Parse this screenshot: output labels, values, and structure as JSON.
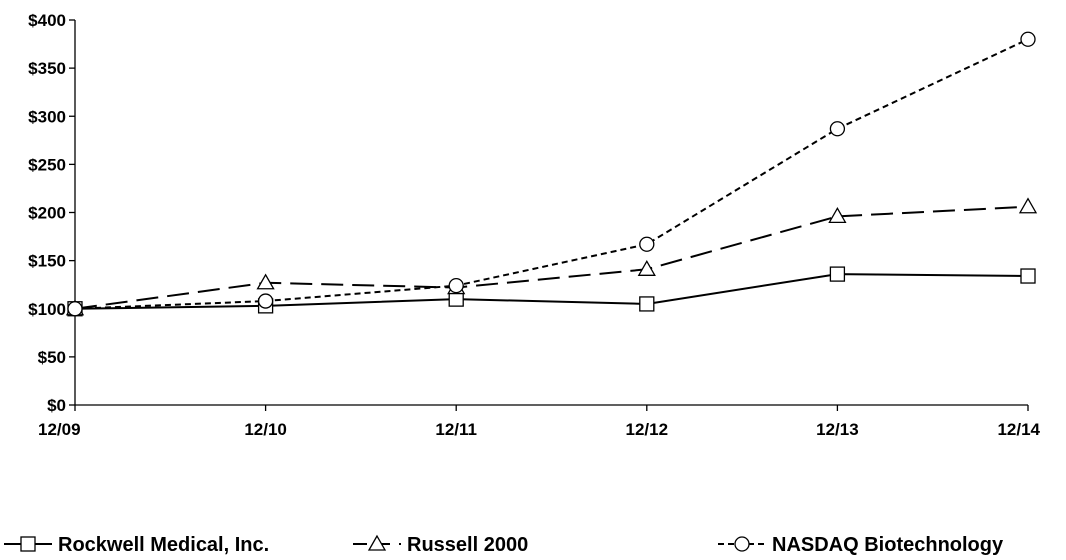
{
  "chart_data": {
    "type": "line",
    "categories": [
      "12/09",
      "12/10",
      "12/11",
      "12/12",
      "12/13",
      "12/14"
    ],
    "y_tick_labels": [
      "$0",
      "$50",
      "$100",
      "$150",
      "$200",
      "$250",
      "$300",
      "$350",
      "$400"
    ],
    "y_ticks": [
      0,
      50,
      100,
      150,
      200,
      250,
      300,
      350,
      400
    ],
    "ylim": [
      0,
      400
    ],
    "grid": false,
    "legend_position": "bottom",
    "series": [
      {
        "name": "Rockwell Medical, Inc.",
        "values": [
          100,
          103,
          110,
          105,
          136,
          134
        ],
        "marker": "square",
        "line_style": "solid",
        "color": "#000000"
      },
      {
        "name": "Russell 2000",
        "values": [
          100,
          127,
          122,
          141,
          196,
          206
        ],
        "marker": "triangle",
        "line_style": "long-dash",
        "color": "#000000"
      },
      {
        "name": "NASDAQ Biotechnology",
        "values": [
          100,
          108,
          124,
          167,
          287,
          380
        ],
        "marker": "circle",
        "line_style": "short-dash",
        "color": "#000000"
      }
    ]
  }
}
